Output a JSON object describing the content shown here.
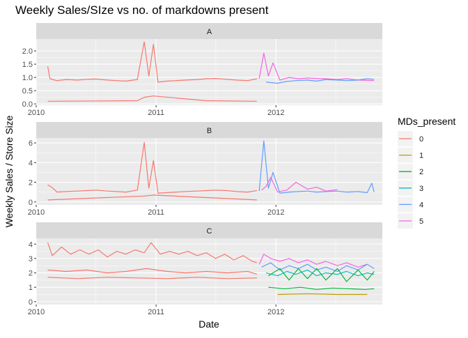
{
  "chart_data": {
    "type": "line",
    "title": "Weekly Sales/SIze vs no. of markdowns present",
    "xlabel": "Date",
    "ylabel": "Weekly Sales / Store Size",
    "x_ticks": [
      "2010",
      "2011",
      "2012"
    ],
    "x_domain": [
      "2010-01-01",
      "2012-11-20"
    ],
    "grid": true,
    "legend": {
      "title": "MDs_present",
      "position": "right",
      "entries": [
        {
          "label": "0",
          "color": "#F8766D"
        },
        {
          "label": "1",
          "color": "#B79F00"
        },
        {
          "label": "2",
          "color": "#00BA38"
        },
        {
          "label": "3",
          "color": "#00BFC4"
        },
        {
          "label": "4",
          "color": "#619CFF"
        },
        {
          "label": "5",
          "color": "#F564E3"
        }
      ]
    },
    "panels": [
      {
        "strip": "A",
        "ylim": [
          -0.05,
          2.45
        ],
        "y_ticks": [
          0.0,
          0.5,
          1.0,
          1.5,
          2.0
        ],
        "y_tick_labels": [
          "0.0",
          "0.5",
          "1.0",
          "1.5",
          "2.0"
        ],
        "series": [
          {
            "markdowns": "0",
            "color": "#F8766D",
            "x": [
              "2010-02-05",
              "2010-02-12",
              "2010-03-05",
              "2010-04-02",
              "2010-05-07",
              "2010-06-04",
              "2010-07-02",
              "2010-08-06",
              "2010-09-03",
              "2010-10-01",
              "2010-11-05",
              "2010-11-26",
              "2010-12-10",
              "2010-12-24",
              "2011-01-07",
              "2011-02-04",
              "2011-03-04",
              "2011-04-01",
              "2011-05-06",
              "2011-06-03",
              "2011-07-01",
              "2011-08-05",
              "2011-09-02",
              "2011-10-07",
              "2011-11-04"
            ],
            "y": [
              1.42,
              0.95,
              0.88,
              0.92,
              0.9,
              0.93,
              0.94,
              0.9,
              0.88,
              0.86,
              0.92,
              2.35,
              1.05,
              2.25,
              0.82,
              0.86,
              0.88,
              0.9,
              0.92,
              0.95,
              0.96,
              0.93,
              0.9,
              0.88,
              0.95
            ]
          },
          {
            "markdowns": "0",
            "color": "#F8766D",
            "x": [
              "2010-02-05",
              "2010-11-05",
              "2010-11-26",
              "2010-12-24",
              "2011-06-03",
              "2011-11-04"
            ],
            "y": [
              0.1,
              0.12,
              0.25,
              0.3,
              0.12,
              0.1
            ]
          },
          {
            "markdowns": "5",
            "color": "#F564E3",
            "x": [
              "2011-11-11",
              "2011-11-25",
              "2011-12-09",
              "2011-12-23",
              "2012-01-13",
              "2012-02-10",
              "2012-03-09",
              "2012-04-06",
              "2012-05-04",
              "2012-06-01",
              "2012-07-06",
              "2012-08-03",
              "2012-09-07",
              "2012-10-26"
            ],
            "y": [
              0.95,
              1.92,
              1.05,
              1.55,
              0.9,
              1.0,
              0.95,
              0.98,
              0.96,
              0.95,
              0.92,
              0.95,
              0.9,
              0.88
            ]
          },
          {
            "markdowns": "4",
            "color": "#619CFF",
            "x": [
              "2011-12-02",
              "2012-01-06",
              "2012-02-03",
              "2012-03-02",
              "2012-04-06",
              "2012-05-04",
              "2012-06-01",
              "2012-07-06",
              "2012-08-03",
              "2012-09-07",
              "2012-10-05",
              "2012-10-26"
            ],
            "y": [
              0.82,
              0.78,
              0.85,
              0.88,
              0.9,
              0.86,
              0.92,
              0.9,
              0.88,
              0.9,
              0.95,
              0.93
            ]
          }
        ]
      },
      {
        "strip": "B",
        "ylim": [
          -0.3,
          6.5
        ],
        "y_ticks": [
          0,
          2,
          4,
          6
        ],
        "y_tick_labels": [
          "0",
          "2",
          "4",
          "6"
        ],
        "series": [
          {
            "markdowns": "0",
            "color": "#F8766D",
            "x": [
              "2010-02-05",
              "2010-02-19",
              "2010-03-05",
              "2010-04-02",
              "2010-05-07",
              "2010-06-04",
              "2010-07-02",
              "2010-08-06",
              "2010-09-03",
              "2010-10-01",
              "2010-11-05",
              "2010-11-26",
              "2010-12-10",
              "2010-12-24",
              "2011-01-07",
              "2011-02-04",
              "2011-03-04",
              "2011-04-01",
              "2011-05-06",
              "2011-06-03",
              "2011-07-01",
              "2011-08-05",
              "2011-09-02",
              "2011-10-07",
              "2011-11-04"
            ],
            "y": [
              1.75,
              1.45,
              1.0,
              1.05,
              1.1,
              1.15,
              1.2,
              1.1,
              1.05,
              1.0,
              1.2,
              6.05,
              1.4,
              4.2,
              0.9,
              0.95,
              1.0,
              1.05,
              1.1,
              1.15,
              1.2,
              1.15,
              1.05,
              1.0,
              1.15
            ]
          },
          {
            "markdowns": "0",
            "color": "#F8766D",
            "x": [
              "2010-02-05",
              "2010-11-26",
              "2010-12-24",
              "2011-11-04"
            ],
            "y": [
              0.2,
              0.6,
              0.7,
              0.2
            ]
          },
          {
            "markdowns": "4",
            "color": "#619CFF",
            "x": [
              "2011-11-11",
              "2011-11-25",
              "2011-12-09",
              "2011-12-23",
              "2012-01-13",
              "2012-02-10",
              "2012-03-09",
              "2012-04-06",
              "2012-05-04",
              "2012-06-01",
              "2012-07-06",
              "2012-08-03",
              "2012-09-07",
              "2012-10-05",
              "2012-10-19",
              "2012-10-26"
            ],
            "y": [
              1.1,
              6.2,
              1.4,
              3.0,
              0.9,
              1.0,
              1.05,
              1.1,
              1.0,
              1.05,
              1.1,
              1.0,
              1.05,
              0.95,
              1.9,
              1.0
            ]
          },
          {
            "markdowns": "5",
            "color": "#F564E3",
            "x": [
              "2011-11-18",
              "2011-12-02",
              "2011-12-16",
              "2012-01-06",
              "2012-02-03",
              "2012-03-02",
              "2012-04-06",
              "2012-05-04",
              "2012-06-01",
              "2012-07-06"
            ],
            "y": [
              1.2,
              1.6,
              2.5,
              1.0,
              1.2,
              2.0,
              1.3,
              1.5,
              1.1,
              1.25
            ]
          }
        ]
      },
      {
        "strip": "C",
        "ylim": [
          -0.2,
          4.4
        ],
        "y_ticks": [
          0,
          1,
          2,
          3,
          4
        ],
        "y_tick_labels": [
          "0",
          "1",
          "2",
          "3",
          "4"
        ],
        "series": [
          {
            "markdowns": "0",
            "color": "#F8766D",
            "x": [
              "2010-02-05",
              "2010-02-19",
              "2010-03-19",
              "2010-04-16",
              "2010-05-14",
              "2010-06-11",
              "2010-07-09",
              "2010-08-06",
              "2010-09-03",
              "2010-10-01",
              "2010-10-29",
              "2010-11-26",
              "2010-12-17",
              "2011-01-14",
              "2011-02-11",
              "2011-03-11",
              "2011-04-08",
              "2011-05-06",
              "2011-06-03",
              "2011-07-01",
              "2011-07-29",
              "2011-08-26",
              "2011-09-23",
              "2011-10-21",
              "2011-11-04"
            ],
            "y": [
              4.1,
              3.2,
              3.8,
              3.3,
              3.6,
              3.3,
              3.6,
              3.1,
              3.5,
              3.3,
              3.6,
              3.4,
              4.1,
              3.3,
              3.5,
              3.3,
              3.5,
              3.2,
              3.4,
              3.0,
              3.3,
              2.9,
              3.2,
              2.8,
              2.7
            ]
          },
          {
            "markdowns": "0",
            "color": "#F8766D",
            "x": [
              "2010-02-05",
              "2010-04-02",
              "2010-06-04",
              "2010-08-06",
              "2010-10-01",
              "2010-12-03",
              "2011-02-04",
              "2011-04-01",
              "2011-06-03",
              "2011-08-05",
              "2011-10-07",
              "2011-11-04"
            ],
            "y": [
              2.2,
              2.1,
              2.2,
              2.0,
              2.1,
              2.3,
              2.1,
              2.0,
              2.1,
              2.0,
              2.1,
              1.9
            ]
          },
          {
            "markdowns": "0",
            "color": "#F8766D",
            "x": [
              "2010-02-05",
              "2010-05-07",
              "2010-08-06",
              "2010-11-05",
              "2011-02-04",
              "2011-05-06",
              "2011-08-05",
              "2011-11-04"
            ],
            "y": [
              1.7,
              1.6,
              1.7,
              1.65,
              1.6,
              1.7,
              1.6,
              1.65
            ]
          },
          {
            "markdowns": "5",
            "color": "#F564E3",
            "x": [
              "2011-11-11",
              "2011-11-25",
              "2011-12-16",
              "2012-01-13",
              "2012-02-10",
              "2012-03-09",
              "2012-04-06",
              "2012-05-04",
              "2012-06-01",
              "2012-07-06",
              "2012-08-03",
              "2012-09-07",
              "2012-10-05"
            ],
            "y": [
              2.6,
              3.3,
              3.0,
              2.8,
              3.0,
              2.7,
              2.9,
              2.6,
              2.8,
              2.5,
              2.7,
              2.4,
              2.6
            ]
          },
          {
            "markdowns": "4",
            "color": "#619CFF",
            "x": [
              "2011-11-18",
              "2011-12-16",
              "2012-01-13",
              "2012-02-10",
              "2012-03-09",
              "2012-04-06",
              "2012-05-04",
              "2012-06-01",
              "2012-07-06",
              "2012-08-03",
              "2012-09-07",
              "2012-10-05",
              "2012-10-26"
            ],
            "y": [
              2.4,
              2.7,
              2.2,
              2.5,
              2.3,
              2.6,
              2.2,
              2.4,
              2.1,
              2.5,
              2.2,
              2.6,
              2.3
            ]
          },
          {
            "markdowns": "3",
            "color": "#00BFC4",
            "x": [
              "2011-12-02",
              "2012-01-06",
              "2012-02-03",
              "2012-03-02",
              "2012-04-06",
              "2012-05-04",
              "2012-06-01",
              "2012-07-06",
              "2012-08-03",
              "2012-09-07",
              "2012-10-05",
              "2012-10-26"
            ],
            "y": [
              2.0,
              1.8,
              2.1,
              1.9,
              2.2,
              1.8,
              2.0,
              1.9,
              2.1,
              1.8,
              2.0,
              1.9
            ]
          },
          {
            "markdowns": "2",
            "color": "#00BA38",
            "x": [
              "2011-12-09",
              "2012-01-13",
              "2012-02-10",
              "2012-03-09",
              "2012-04-06",
              "2012-05-04",
              "2012-06-01",
              "2012-07-06",
              "2012-08-03",
              "2012-09-07",
              "2012-10-05",
              "2012-10-26"
            ],
            "y": [
              1.8,
              2.3,
              1.5,
              2.3,
              1.6,
              2.3,
              1.5,
              2.3,
              1.4,
              2.2,
              1.5,
              2.1
            ]
          },
          {
            "markdowns": "2",
            "color": "#00BA38",
            "x": [
              "2011-12-09",
              "2012-01-27",
              "2012-03-16",
              "2012-05-04",
              "2012-06-22",
              "2012-08-10",
              "2012-09-28",
              "2012-10-26"
            ],
            "y": [
              1.0,
              0.9,
              1.0,
              0.85,
              0.95,
              0.9,
              0.85,
              0.9
            ]
          },
          {
            "markdowns": "1",
            "color": "#B79F00",
            "x": [
              "2012-01-06",
              "2012-04-06",
              "2012-07-06",
              "2012-10-05"
            ],
            "y": [
              0.5,
              0.55,
              0.5,
              0.5
            ]
          }
        ]
      }
    ]
  }
}
